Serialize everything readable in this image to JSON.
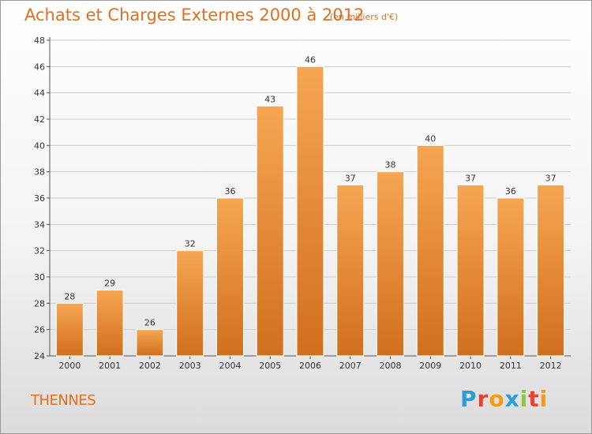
{
  "header": {
    "title": "Achats et Charges Externes 2000 à 2012",
    "unit": "(en milliers d'€)"
  },
  "footer": {
    "city": "THENNES",
    "logo_letters": [
      "P",
      "r",
      "o",
      "x",
      "i",
      "t",
      "i"
    ],
    "logo_colors": [
      "#2a9fd6",
      "#e8422f",
      "#f39c12",
      "#2a9fd6",
      "#8dc63f",
      "#e8422f",
      "#f39c12"
    ]
  },
  "colors": {
    "bar_light": "#f6a653",
    "bar_dark": "#d16f1c",
    "accent": "#e0701e",
    "grid": "#cccccc"
  },
  "chart_data": {
    "type": "bar",
    "title": "Achats et Charges Externes 2000 à 2012",
    "xlabel": "",
    "ylabel": "",
    "categories": [
      "2000",
      "2001",
      "2002",
      "2003",
      "2004",
      "2005",
      "2006",
      "2007",
      "2008",
      "2009",
      "2010",
      "2011",
      "2012"
    ],
    "values": [
      28,
      29,
      26,
      32,
      36,
      43,
      46,
      37,
      38,
      40,
      37,
      36,
      37
    ],
    "ylim": [
      24,
      48
    ],
    "yticks": [
      24,
      26,
      28,
      30,
      32,
      34,
      36,
      38,
      40,
      42,
      44,
      46,
      48
    ],
    "grid": true,
    "legend": "none"
  }
}
